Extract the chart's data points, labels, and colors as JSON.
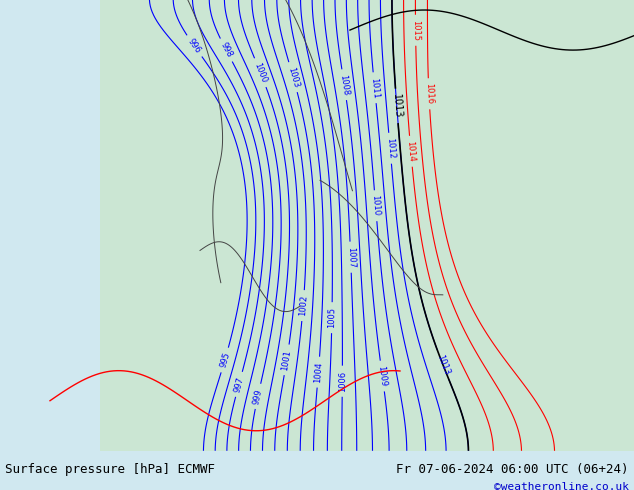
{
  "title_left": "Surface pressure [hPa] ECMWF",
  "title_right": "Fr 07-06-2024 06:00 UTC (06+24)",
  "copyright": "©weatheronline.co.uk",
  "bg_color": "#d0e8f0",
  "land_color": "#c8e6c0",
  "border_color": "#888888",
  "bottom_bar_color": "#e8e8e8",
  "title_color": "#000000",
  "copyright_color": "#0000cc",
  "fig_width": 6.34,
  "fig_height": 4.9,
  "dpi": 100
}
